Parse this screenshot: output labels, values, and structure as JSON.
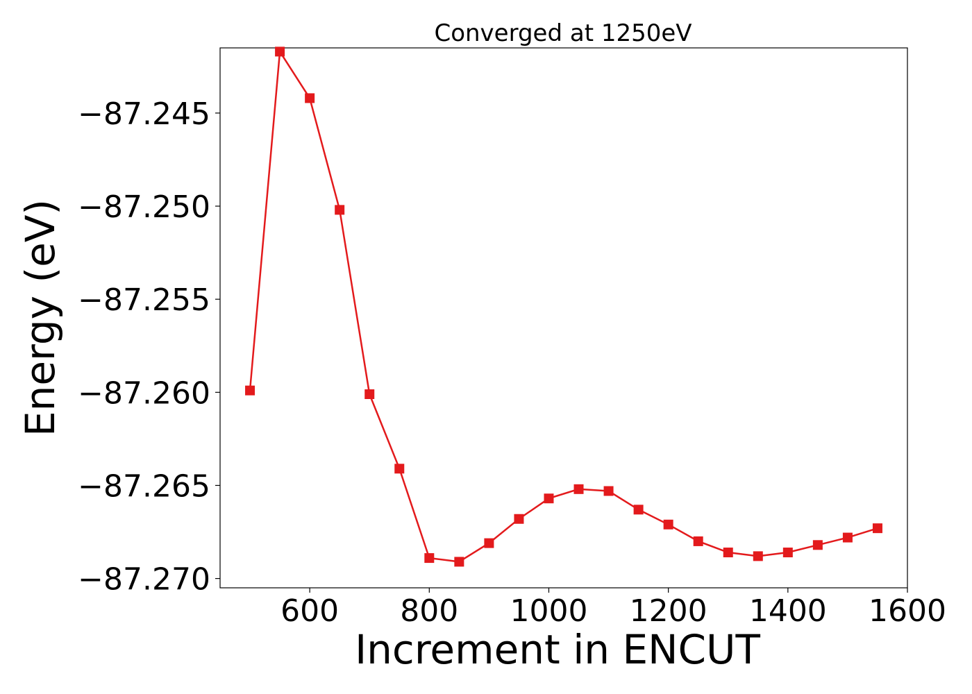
{
  "chart_data": {
    "type": "line",
    "title": "Converged at 1250eV",
    "xlabel": "Increment in ENCUT",
    "ylabel": "Energy (eV)",
    "xlim": [
      450,
      1600
    ],
    "ylim": [
      -87.2705,
      -87.2415
    ],
    "x_ticks": [
      600,
      800,
      1000,
      1200,
      1400,
      1600
    ],
    "y_ticks": [
      -87.245,
      -87.25,
      -87.255,
      -87.26,
      -87.265,
      -87.27
    ],
    "x_tick_labels": [
      "600",
      "800",
      "1000",
      "1200",
      "1400",
      "1600"
    ],
    "y_tick_labels": [
      "−87.245",
      "−87.250",
      "−87.255",
      "−87.260",
      "−87.265",
      "−87.270"
    ],
    "grid": false,
    "series": [
      {
        "color": "#e31a1c",
        "marker": "square",
        "x": [
          500,
          550,
          600,
          650,
          700,
          750,
          800,
          850,
          900,
          950,
          1000,
          1050,
          1100,
          1150,
          1200,
          1250,
          1300,
          1350,
          1400,
          1450,
          1500,
          1550
        ],
        "y": [
          -87.2599,
          -87.2417,
          -87.2442,
          -87.2502,
          -87.2601,
          -87.2641,
          -87.2689,
          -87.2691,
          -87.2681,
          -87.2668,
          -87.2657,
          -87.2652,
          -87.2653,
          -87.2663,
          -87.2671,
          -87.268,
          -87.2686,
          -87.2688,
          -87.2686,
          -87.2682,
          -87.2678,
          -87.2673
        ]
      }
    ]
  }
}
